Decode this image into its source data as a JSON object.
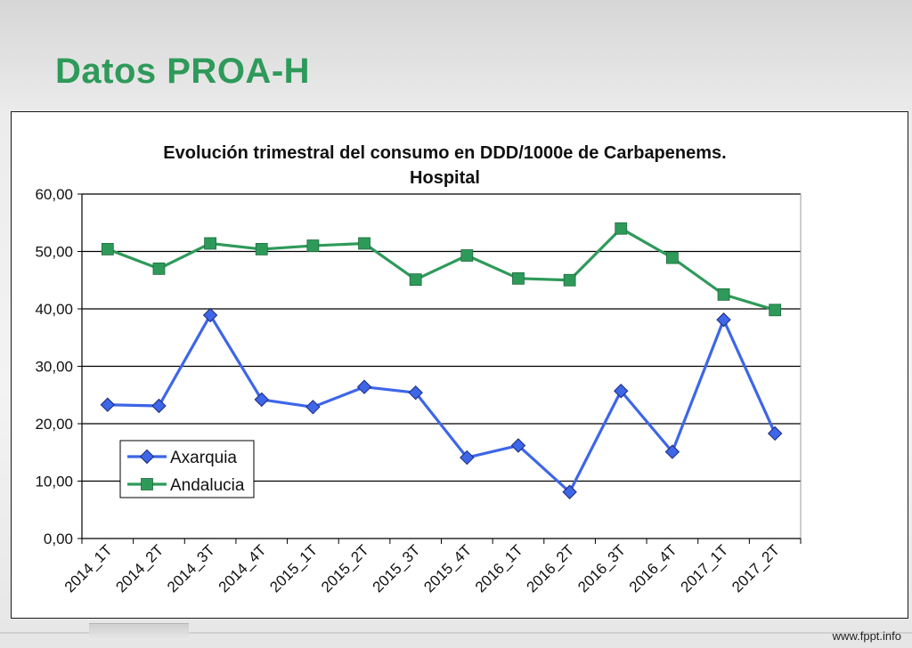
{
  "slide": {
    "title": "Datos PROA-H",
    "footer": "www.fppt.info"
  },
  "colors": {
    "title": "#2e9a5a",
    "axarquia": "#3d66e8",
    "andalucia": "#2e9a5a"
  },
  "chart_data": {
    "type": "line",
    "title_lines": [
      "Evolución trimestral del consumo en DDD/1000e de Carbapenems.",
      "Hospital"
    ],
    "xlabel": "",
    "ylabel": "",
    "categories": [
      "2014_1T",
      "2014_2T",
      "2014_3T",
      "2014_4T",
      "2015_1T",
      "2015_2T",
      "2015_3T",
      "2015_4T",
      "2016_1T",
      "2016_2T",
      "2016_3T",
      "2016_4T",
      "2017_1T",
      "2017_2T"
    ],
    "ylim": [
      0,
      60
    ],
    "yticks": [
      "0,00",
      "10,00",
      "20,00",
      "30,00",
      "40,00",
      "50,00",
      "60,00"
    ],
    "grid": true,
    "legend_position": "lower-left",
    "series": [
      {
        "name": "Axarquia",
        "marker": "diamond",
        "color": "#3d66e8",
        "values": [
          23.3,
          23.1,
          38.9,
          24.2,
          22.9,
          26.4,
          25.4,
          14.1,
          16.2,
          8.1,
          25.7,
          15.1,
          38.1,
          18.3
        ]
      },
      {
        "name": "Andalucia",
        "marker": "square",
        "color": "#2e9a5a",
        "values": [
          50.4,
          47.0,
          51.4,
          50.4,
          51.0,
          51.4,
          45.1,
          49.3,
          45.3,
          45.0,
          54.0,
          48.9,
          42.5,
          39.8
        ]
      }
    ]
  }
}
